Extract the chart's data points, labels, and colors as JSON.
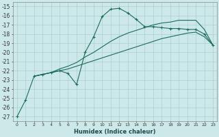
{
  "xlabel": "Humidex (Indice chaleur)",
  "bg_color": "#cce8e8",
  "line_color": "#1a6b5a",
  "grid_color": "#aacfcf",
  "xlim": [
    -0.5,
    23.5
  ],
  "ylim": [
    -27.5,
    -14.5
  ],
  "xticks": [
    0,
    1,
    2,
    3,
    4,
    5,
    6,
    7,
    8,
    9,
    10,
    11,
    12,
    13,
    14,
    15,
    16,
    17,
    18,
    19,
    20,
    21,
    22,
    23
  ],
  "yticks": [
    -27,
    -26,
    -25,
    -24,
    -23,
    -22,
    -21,
    -20,
    -19,
    -18,
    -17,
    -16,
    -15
  ],
  "line1_x": [
    0,
    1,
    2,
    3,
    4,
    5,
    6,
    7,
    8,
    9,
    10,
    11,
    12,
    13,
    14,
    15,
    16,
    17,
    18,
    19,
    20,
    21,
    22,
    23
  ],
  "line1_y": [
    -27.0,
    -25.2,
    -22.6,
    -22.4,
    -22.2,
    -22.0,
    -22.3,
    -23.5,
    -20.0,
    -18.3,
    -16.1,
    -15.3,
    -15.2,
    -15.7,
    -16.4,
    -17.2,
    -17.2,
    -17.3,
    -17.4,
    -17.4,
    -17.5,
    -17.5,
    -18.0,
    -19.2
  ],
  "line2_x": [
    2,
    3,
    4,
    5,
    6,
    7,
    8,
    9,
    10,
    11,
    12,
    13,
    14,
    15,
    16,
    17,
    18,
    19,
    20,
    21,
    22,
    23
  ],
  "line2_y": [
    -22.6,
    -22.4,
    -22.2,
    -22.0,
    -21.8,
    -21.5,
    -21.2,
    -20.9,
    -20.6,
    -20.3,
    -20.0,
    -19.7,
    -19.4,
    -19.1,
    -18.8,
    -18.5,
    -18.3,
    -18.1,
    -17.9,
    -17.8,
    -18.3,
    -19.2
  ],
  "line3_x": [
    2,
    3,
    4,
    5,
    6,
    7,
    8,
    9,
    10,
    11,
    12,
    13,
    14,
    15,
    16,
    17,
    18,
    19,
    20,
    21,
    22,
    23
  ],
  "line3_y": [
    -22.6,
    -22.4,
    -22.2,
    -21.8,
    -21.5,
    -21.1,
    -20.5,
    -20.0,
    -19.4,
    -18.8,
    -18.3,
    -17.9,
    -17.6,
    -17.3,
    -17.0,
    -16.8,
    -16.7,
    -16.5,
    -16.5,
    -16.5,
    -17.5,
    -19.2
  ]
}
